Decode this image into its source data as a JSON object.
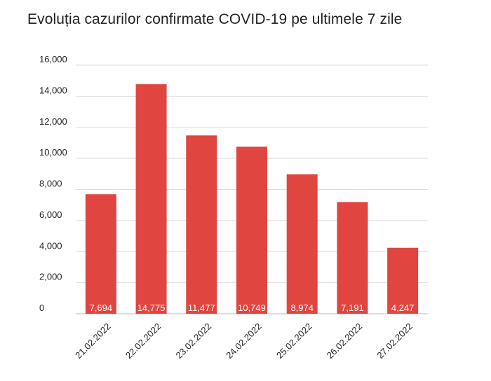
{
  "chart_data": {
    "type": "bar",
    "title": "Evoluția cazurilor confirmate COVID-19 pe ultimele 7 zile",
    "categories": [
      "21.02.2022",
      "22.02.2022",
      "23.02.2022",
      "24.02.2022",
      "25.02.2022",
      "26.02.2022",
      "27.02.2022"
    ],
    "values": [
      7694,
      14775,
      11477,
      10749,
      8974,
      7191,
      4247
    ],
    "value_labels": [
      "7,694",
      "14,775",
      "11,477",
      "10,749",
      "8,974",
      "7,191",
      "4,247"
    ],
    "ylim": [
      0,
      16000
    ],
    "y_ticks": [
      0,
      2000,
      4000,
      6000,
      8000,
      10000,
      12000,
      14000,
      16000
    ],
    "y_tick_labels": [
      "0",
      "2,000",
      "4,000",
      "6,000",
      "8,000",
      "10,000",
      "12,000",
      "14,000",
      "16,000"
    ],
    "grid": true,
    "legend": "none",
    "bar_color": "#e0463f",
    "grid_color": "#dddddd"
  }
}
